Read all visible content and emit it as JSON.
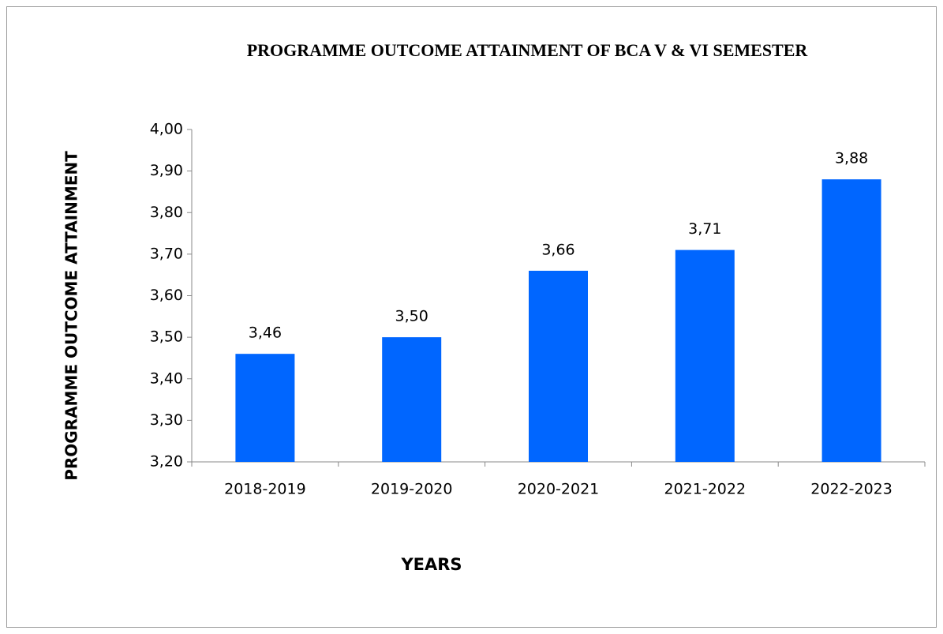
{
  "chart_data": {
    "type": "bar",
    "title": "PROGRAMME OUTCOME ATTAINMENT OF BCA V & VI SEMESTER",
    "x_label": "YEARS",
    "y_label": "PROGRAMME OUTCOME ATTAINMENT",
    "categories": [
      "2018-2019",
      "2019-2020",
      "2020-2021",
      "2021-2022",
      "2022-2023"
    ],
    "values": [
      3.46,
      3.5,
      3.66,
      3.71,
      3.88
    ],
    "value_labels": [
      "3,46",
      "3,50",
      "3,66",
      "3,71",
      "3,88"
    ],
    "color": "#0066ff",
    "ylim": [
      3.2,
      4.0
    ],
    "yticks": [
      {
        "value": 3.2,
        "label": "3,20"
      },
      {
        "value": 3.3,
        "label": "3,30"
      },
      {
        "value": 3.4,
        "label": "3,40"
      },
      {
        "value": 3.5,
        "label": "3,50"
      },
      {
        "value": 3.6,
        "label": "3,60"
      },
      {
        "value": 3.7,
        "label": "3,70"
      },
      {
        "value": 3.8,
        "label": "3,80"
      },
      {
        "value": 3.9,
        "label": "3,90"
      },
      {
        "value": 4.0,
        "label": "4,00"
      }
    ],
    "grid": false
  }
}
